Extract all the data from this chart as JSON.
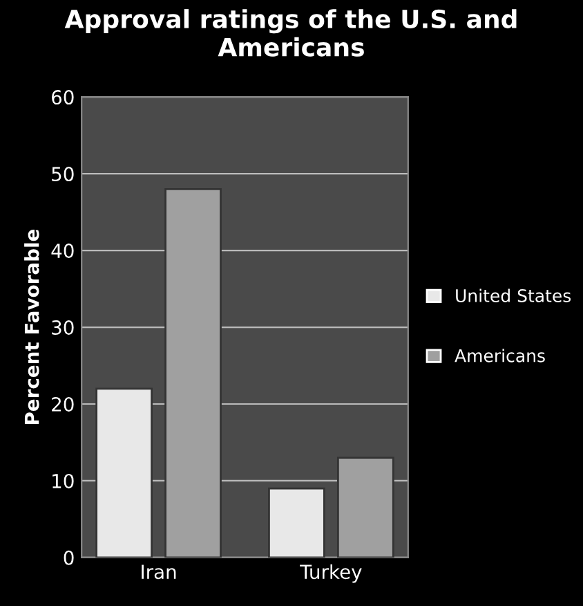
{
  "chart_data": {
    "type": "bar",
    "title": "Approval ratings of the U.S. and Americans",
    "ylabel": "Percent Favorable",
    "categories": [
      "Iran",
      "Turkey"
    ],
    "series": [
      {
        "name": "United States",
        "color": "#e8e8e8",
        "values": [
          22,
          9
        ]
      },
      {
        "name": "Americans",
        "color": "#a0a0a0",
        "values": [
          48,
          13
        ]
      }
    ],
    "ylim": [
      0,
      60
    ],
    "yticks": [
      0,
      10,
      20,
      30,
      40,
      50,
      60
    ],
    "grid": "y",
    "legend": "right"
  }
}
